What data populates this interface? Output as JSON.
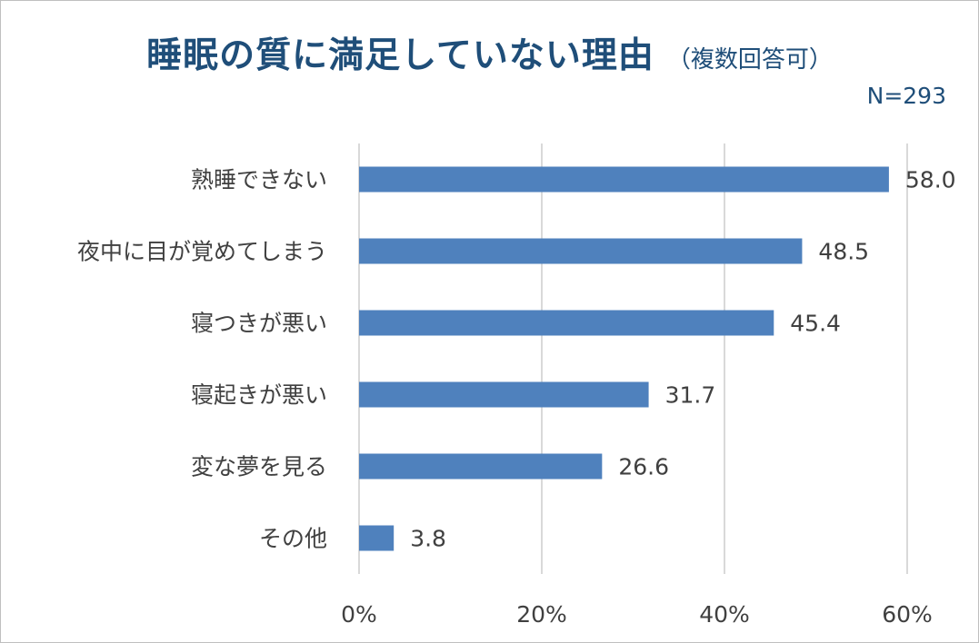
{
  "chart_data": {
    "type": "bar",
    "orientation": "horizontal",
    "title": "睡眠の質に満足していない理由",
    "subtitle": "（複数回答可）",
    "note": "N=293",
    "categories": [
      "熟睡できない",
      "夜中に目が覚めてしまう",
      "寝つきが悪い",
      "寝起きが悪い",
      "変な夢を見る",
      "その他"
    ],
    "values": [
      58.0,
      48.5,
      45.4,
      31.7,
      26.6,
      3.8
    ],
    "value_labels": [
      "58.0",
      "48.5",
      "45.4",
      "31.7",
      "26.6",
      "3.8"
    ],
    "xlim": [
      0,
      60
    ],
    "xticks": [
      0,
      20,
      40,
      60
    ],
    "xtick_labels": [
      "0%",
      "20%",
      "40%",
      "60%"
    ],
    "grid": true,
    "legend": "none",
    "bar_color": "#4f81bd",
    "grid_color": "#d9d9d9"
  }
}
